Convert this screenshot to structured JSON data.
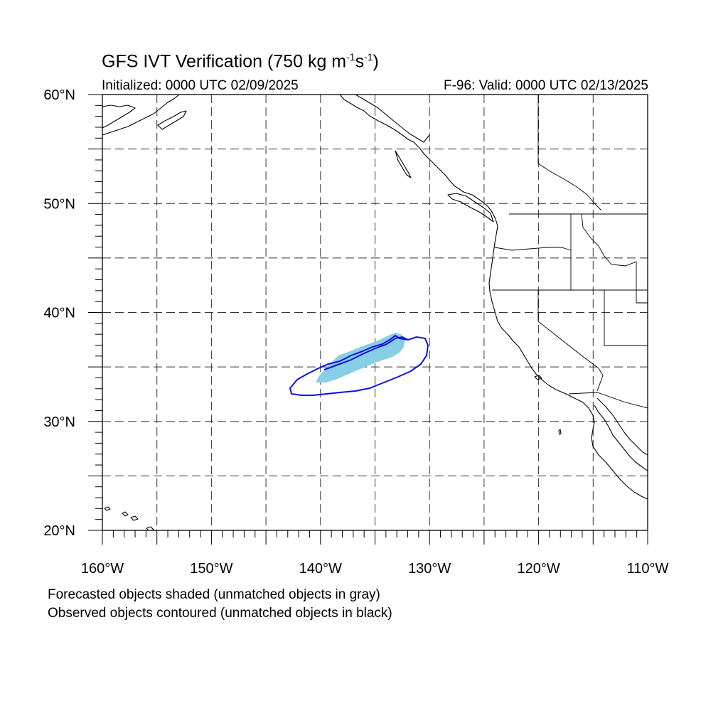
{
  "title": {
    "prefix": "GFS IVT Verification (750 kg m",
    "exp1": "-1",
    "mid": "s",
    "exp2": "-1",
    "suffix": ")"
  },
  "initialized": "Initialized: 0000 UTC 02/09/2025",
  "valid": "F-96: Valid: 0000 UTC 02/13/2025",
  "footnotes": [
    "Forecasted objects shaded (unmatched objects in gray)",
    "Observed objects contoured (unmatched objects in black)"
  ],
  "map": {
    "lon_range": [
      -160,
      -110
    ],
    "lat_range": [
      20,
      60
    ],
    "lat_labels": [
      {
        "lat": 60,
        "text": "60°N"
      },
      {
        "lat": 50,
        "text": "50°N"
      },
      {
        "lat": 40,
        "text": "40°N"
      },
      {
        "lat": 30,
        "text": "30°N"
      },
      {
        "lat": 20,
        "text": "20°N"
      }
    ],
    "lon_labels": [
      {
        "lon": -160,
        "text": "160°W"
      },
      {
        "lon": -150,
        "text": "150°W"
      },
      {
        "lon": -140,
        "text": "140°W"
      },
      {
        "lon": -130,
        "text": "130°W"
      },
      {
        "lon": -120,
        "text": "120°W"
      },
      {
        "lon": -110,
        "text": "110°W"
      }
    ],
    "grid_interval_deg": 5,
    "colors": {
      "forecast_shade": "#87CEE6",
      "observed_contour": "#1010E0",
      "land_outline": "#000000"
    }
  }
}
